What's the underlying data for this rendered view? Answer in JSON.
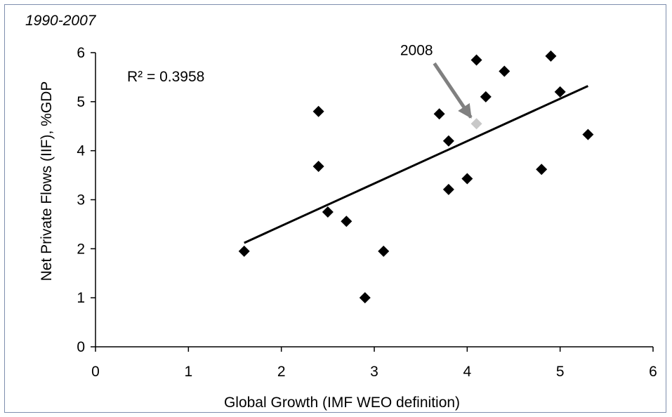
{
  "chart_data": {
    "type": "scatter",
    "subtitle": "1990-2007",
    "xlabel": "Global Growth (IMF WEO definition)",
    "ylabel": "Net Private Flows (IIF), %GDP",
    "xlim": [
      0,
      6
    ],
    "ylim": [
      0,
      6
    ],
    "xticks": [
      "0",
      "1",
      "2",
      "3",
      "4",
      "5",
      "6"
    ],
    "yticks": [
      "0",
      "1",
      "2",
      "3",
      "4",
      "5",
      "6"
    ],
    "grid": false,
    "r_squared_label": "R² = 0.3958",
    "series": [
      {
        "marker_color": "#000000",
        "points": [
          {
            "x": 1.6,
            "y": 1.95
          },
          {
            "x": 2.4,
            "y": 4.8
          },
          {
            "x": 2.4,
            "y": 3.68
          },
          {
            "x": 2.5,
            "y": 2.75
          },
          {
            "x": 2.7,
            "y": 2.56
          },
          {
            "x": 2.9,
            "y": 1.0
          },
          {
            "x": 3.1,
            "y": 1.95
          },
          {
            "x": 3.7,
            "y": 4.75
          },
          {
            "x": 3.8,
            "y": 4.2
          },
          {
            "x": 3.8,
            "y": 3.21
          },
          {
            "x": 4.0,
            "y": 3.43
          },
          {
            "x": 4.1,
            "y": 5.85
          },
          {
            "x": 4.2,
            "y": 5.1
          },
          {
            "x": 4.4,
            "y": 5.62
          },
          {
            "x": 4.8,
            "y": 3.62
          },
          {
            "x": 4.9,
            "y": 5.93
          },
          {
            "x": 5.0,
            "y": 5.2
          },
          {
            "x": 5.3,
            "y": 4.33
          }
        ]
      },
      {
        "marker_color": "#c8c8c8",
        "points": [
          {
            "x": 4.1,
            "y": 4.55
          }
        ]
      }
    ],
    "trendline": {
      "x": [
        1.6,
        5.3
      ],
      "y": [
        2.12,
        5.32
      ]
    },
    "annotations": [
      {
        "text": "2008",
        "target": {
          "x": 4.1,
          "y": 4.55
        },
        "arrow_color": "#808080"
      }
    ]
  }
}
